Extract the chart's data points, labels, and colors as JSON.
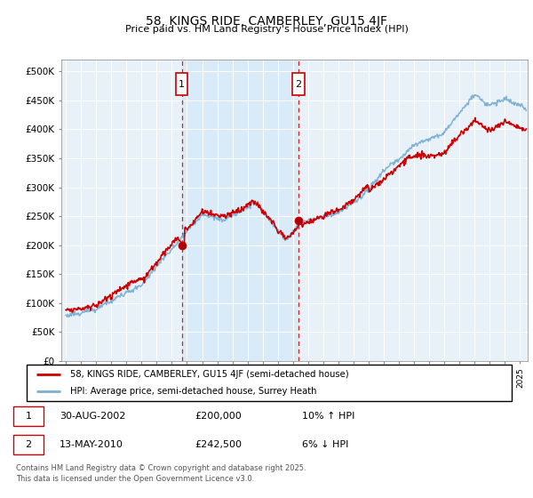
{
  "title": "58, KINGS RIDE, CAMBERLEY, GU15 4JF",
  "subtitle": "Price paid vs. HM Land Registry's House Price Index (HPI)",
  "ylabel_ticks": [
    "£0",
    "£50K",
    "£100K",
    "£150K",
    "£200K",
    "£250K",
    "£300K",
    "£350K",
    "£400K",
    "£450K",
    "£500K"
  ],
  "ytick_vals": [
    0,
    50000,
    100000,
    150000,
    200000,
    250000,
    300000,
    350000,
    400000,
    450000,
    500000
  ],
  "ylim": [
    0,
    520000
  ],
  "xlim_start": 1994.7,
  "xlim_end": 2025.5,
  "sale1_x": 2002.66,
  "sale1_y": 200000,
  "sale2_x": 2010.37,
  "sale2_y": 242500,
  "legend_line1": "58, KINGS RIDE, CAMBERLEY, GU15 4JF (semi-detached house)",
  "legend_line2": "HPI: Average price, semi-detached house, Surrey Heath",
  "table_row1": [
    "1",
    "30-AUG-2002",
    "£200,000",
    "10% ↑ HPI"
  ],
  "table_row2": [
    "2",
    "13-MAY-2010",
    "£242,500",
    "6% ↓ HPI"
  ],
  "footnote": "Contains HM Land Registry data © Crown copyright and database right 2025.\nThis data is licensed under the Open Government Licence v3.0.",
  "line_color_red": "#cc0000",
  "line_color_blue": "#7ab0d4",
  "shade_color": "#d8eaf8",
  "grid_color": "#cccccc",
  "plot_bg": "#e8f0f8"
}
